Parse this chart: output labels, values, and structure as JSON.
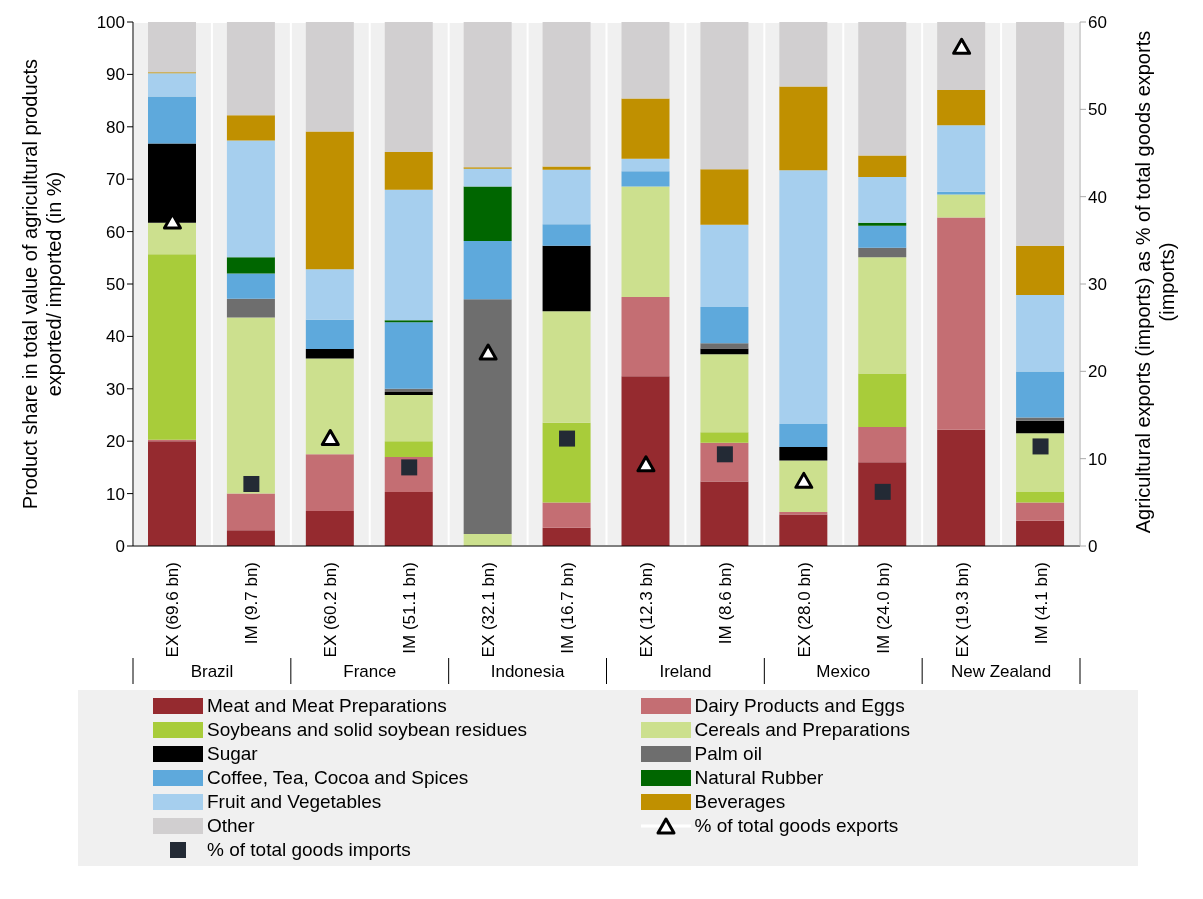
{
  "chart_data": {
    "type": "bar",
    "stacked": true,
    "ylabel": "Product share in total value of agricultural products exported/ imported (in %)",
    "y2label": "Agricultural exports (imports) as % of total goods exports (imports)",
    "categories": [
      "EX (69.6 bn)",
      "IM (9.7 bn)",
      "EX (60.2 bn)",
      "IM (51.1 bn)",
      "EX (32.1 bn)",
      "IM (16.7 bn)",
      "EX (12.3 bn)",
      "IM (8.6 bn)",
      "EX (28.0 bn)",
      "IM (24.0 bn)",
      "EX (19.3 bn)",
      "IM (4.1 bn)"
    ],
    "annotations": [
      "Brazil",
      "France",
      "Indonesia",
      "Ireland",
      "Mexico",
      "New Zealand"
    ],
    "series": [
      {
        "name": "Meat and Meat Preparations",
        "color": "#952a2f",
        "values": [
          20,
          3,
          6.7,
          10.3,
          0,
          3.5,
          32.4,
          12.3,
          6,
          16,
          22.2,
          4.8
        ]
      },
      {
        "name": "Dairy Products and Eggs",
        "color": "#c46e73",
        "values": [
          0.3,
          7,
          10.8,
          6.7,
          0,
          4.8,
          15.1,
          7.4,
          0.5,
          6.7,
          40.5,
          3.5
        ]
      },
      {
        "name": "Soybeans and solid soybean residues",
        "color": "#a8cc3a",
        "values": [
          35.4,
          0,
          0,
          3,
          0,
          15.2,
          0,
          2,
          0,
          10.2,
          0,
          2
        ]
      },
      {
        "name": "Cereals and Preparations",
        "color": "#cce08e",
        "values": [
          6,
          33.6,
          18.3,
          8.8,
          2.3,
          21.3,
          21.1,
          14.9,
          9.8,
          22.2,
          4.4,
          11.2
        ]
      },
      {
        "name": "Sugar",
        "color": "#000000",
        "values": [
          15.1,
          0,
          1.8,
          0.6,
          0,
          12.5,
          0,
          1.1,
          2.6,
          0,
          0,
          2.4
        ]
      },
      {
        "name": "Palm oil",
        "color": "#6e6e6e",
        "values": [
          0,
          3.6,
          0,
          0.6,
          44.8,
          0,
          0,
          1,
          0,
          1.8,
          0,
          0.6
        ]
      },
      {
        "name": "Coffee, Tea, Cocoa and Spices",
        "color": "#5ea9dc",
        "values": [
          9,
          4.8,
          5.6,
          12.7,
          11.1,
          4.1,
          2.9,
          6.9,
          4.4,
          4.2,
          0.5,
          8.8
        ]
      },
      {
        "name": "Natural Rubber",
        "color": "#006600",
        "values": [
          0,
          3.1,
          0,
          0.4,
          10.4,
          0,
          0,
          0,
          0,
          0.6,
          0,
          0
        ]
      },
      {
        "name": "Fruit and Vegetables",
        "color": "#a6cfee",
        "values": [
          4.4,
          22.3,
          9.6,
          24.9,
          3.4,
          10.4,
          2.4,
          15.7,
          48.4,
          8.7,
          12.7,
          14.6
        ]
      },
      {
        "name": "Beverages",
        "color": "#c09000",
        "values": [
          0.2,
          4.8,
          26.3,
          7.2,
          0.3,
          0.6,
          11.5,
          10.6,
          16,
          4.1,
          6.7,
          9.4
        ]
      },
      {
        "name": "Other",
        "color": "#d1cfd0",
        "values": [
          9.6,
          17.8,
          20.9,
          24.8,
          27.7,
          27.6,
          14.6,
          28.1,
          12.3,
          25.5,
          13,
          42.7
        ]
      },
      {
        "name": "% of total goods exports",
        "type": "scatter",
        "axis": "y2",
        "marker": "triangle",
        "color": "#ffffff",
        "values": [
          37.1,
          null,
          12.3,
          null,
          22.1,
          null,
          9.3,
          null,
          7.4,
          null,
          57.1,
          null
        ]
      },
      {
        "name": "% of total goods imports",
        "type": "scatter",
        "axis": "y2",
        "marker": "square",
        "color": "#232a35",
        "values": [
          null,
          7.1,
          null,
          9,
          null,
          12.3,
          null,
          10.5,
          null,
          6.2,
          null,
          11.4
        ]
      }
    ],
    "ylim": [
      0,
      100
    ],
    "yticks": [
      0,
      10,
      20,
      30,
      40,
      50,
      60,
      70,
      80,
      90,
      100
    ],
    "y2lim": [
      0,
      60
    ],
    "y2ticks": [
      0,
      10,
      20,
      30,
      40,
      50,
      60
    ],
    "grid": true,
    "legend": "bottom"
  }
}
